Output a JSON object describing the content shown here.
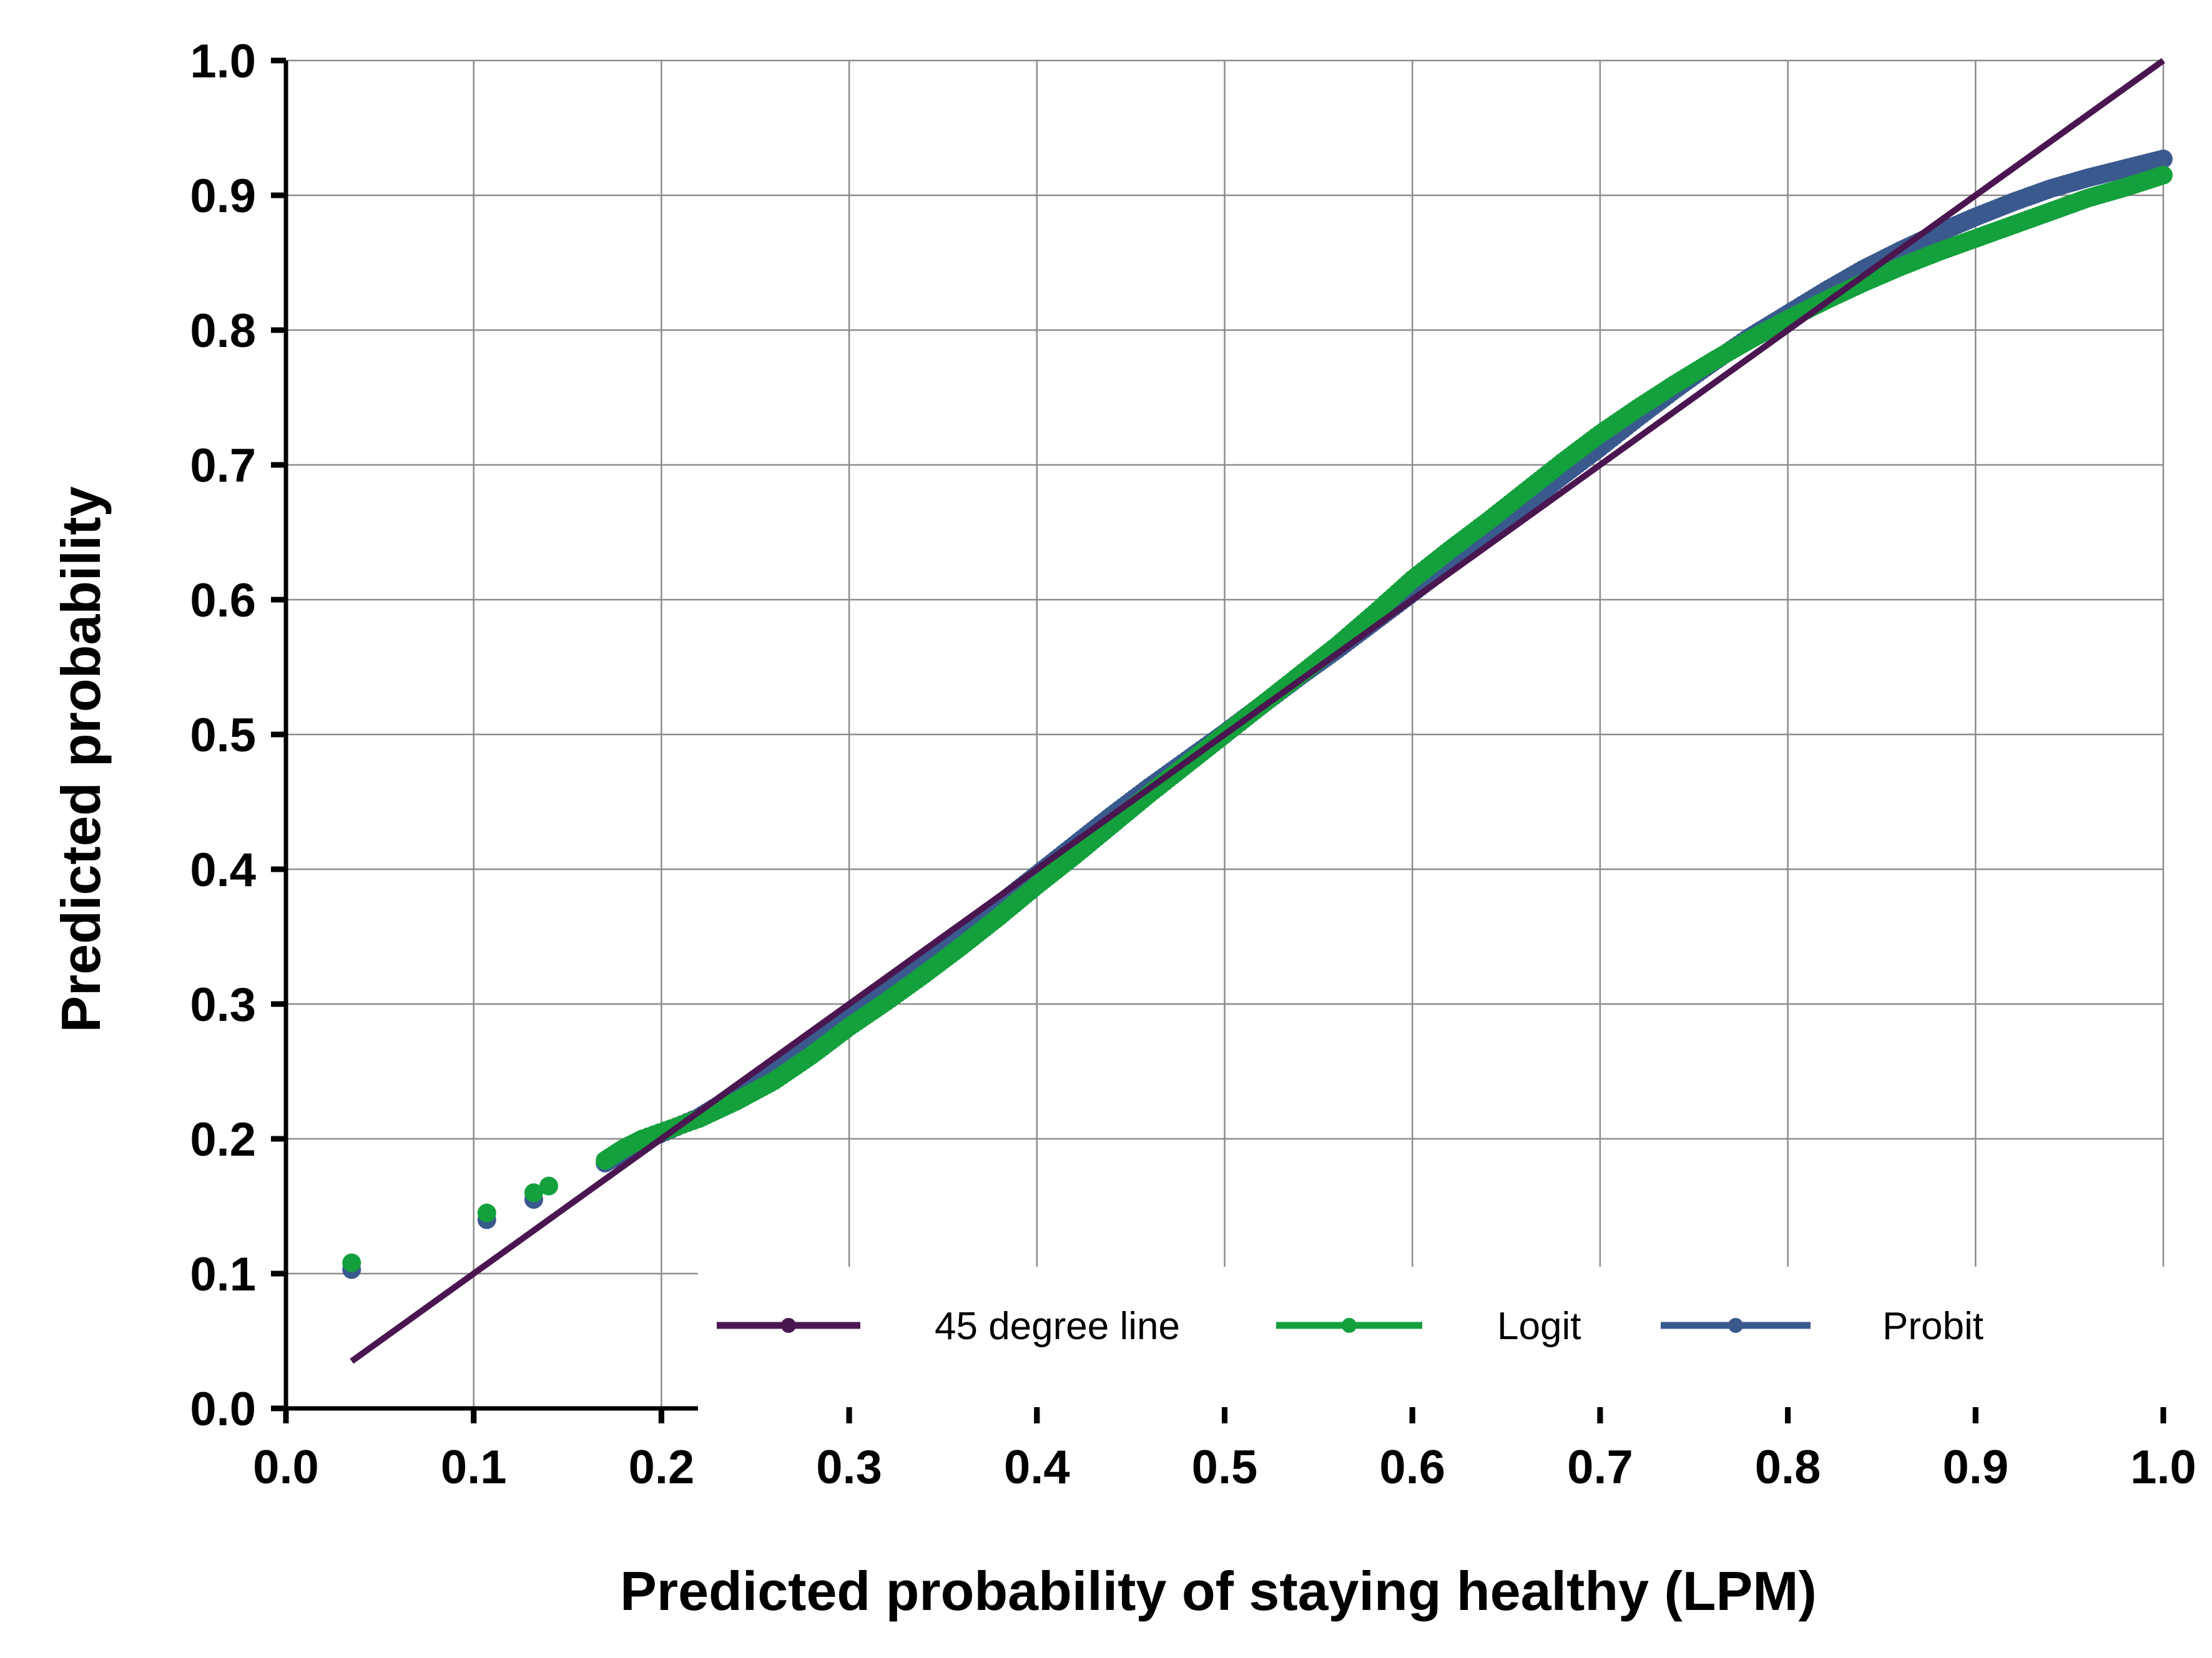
{
  "chart_data": {
    "type": "scatter",
    "title": "",
    "xlabel": "Predicted probability of staying healthy (LPM)",
    "ylabel": "Predicted probability",
    "xlim": [
      0.0,
      1.0
    ],
    "ylim": [
      0.0,
      1.0
    ],
    "x_ticks": [
      "0.0",
      "0.1",
      "0.2",
      "0.3",
      "0.4",
      "0.5",
      "0.6",
      "0.7",
      "0.8",
      "0.9",
      "1.0"
    ],
    "y_ticks": [
      "0.0",
      "0.1",
      "0.2",
      "0.3",
      "0.4",
      "0.5",
      "0.6",
      "0.7",
      "0.8",
      "0.9",
      "1.0"
    ],
    "grid": true,
    "legend_position": "bottom-right, inside plot",
    "series": [
      {
        "name": "45 degree line",
        "type": "line",
        "color": "#4a1650",
        "x": [
          0.035,
          1.0
        ],
        "y": [
          0.035,
          1.0
        ]
      },
      {
        "name": "Logit",
        "type": "scatter",
        "color": "#14a03c",
        "x": [
          0.035,
          0.107,
          0.132,
          0.14,
          0.17,
          0.18,
          0.19,
          0.22,
          0.24,
          0.26,
          0.28,
          0.3,
          0.32,
          0.34,
          0.36,
          0.38,
          0.4,
          0.42,
          0.44,
          0.46,
          0.48,
          0.5,
          0.52,
          0.54,
          0.56,
          0.58,
          0.6,
          0.62,
          0.64,
          0.66,
          0.68,
          0.7,
          0.72,
          0.74,
          0.76,
          0.78,
          0.8,
          0.82,
          0.84,
          0.86,
          0.88,
          0.9,
          0.92,
          0.94,
          0.96,
          0.98,
          1.0
        ],
        "y": [
          0.108,
          0.145,
          0.16,
          0.165,
          0.184,
          0.193,
          0.2,
          0.215,
          0.228,
          0.243,
          0.262,
          0.283,
          0.302,
          0.322,
          0.343,
          0.365,
          0.388,
          0.41,
          0.433,
          0.456,
          0.478,
          0.5,
          0.522,
          0.544,
          0.566,
          0.59,
          0.615,
          0.637,
          0.658,
          0.68,
          0.702,
          0.723,
          0.742,
          0.76,
          0.777,
          0.793,
          0.808,
          0.822,
          0.835,
          0.847,
          0.858,
          0.868,
          0.878,
          0.888,
          0.898,
          0.906,
          0.915
        ]
      },
      {
        "name": "Probit",
        "type": "scatter",
        "color": "#3a5a8e",
        "x": [
          0.035,
          0.107,
          0.132,
          0.17,
          0.19,
          0.22,
          0.24,
          0.26,
          0.28,
          0.3,
          0.32,
          0.34,
          0.36,
          0.38,
          0.4,
          0.42,
          0.44,
          0.46,
          0.48,
          0.5,
          0.52,
          0.54,
          0.56,
          0.58,
          0.6,
          0.62,
          0.64,
          0.66,
          0.68,
          0.7,
          0.72,
          0.74,
          0.76,
          0.78,
          0.8,
          0.82,
          0.84,
          0.86,
          0.88,
          0.9,
          0.92,
          0.94,
          0.96,
          0.98,
          1.0
        ],
        "y": [
          0.103,
          0.14,
          0.155,
          0.182,
          0.198,
          0.216,
          0.233,
          0.252,
          0.27,
          0.29,
          0.31,
          0.33,
          0.352,
          0.374,
          0.396,
          0.418,
          0.44,
          0.461,
          0.481,
          0.501,
          0.522,
          0.543,
          0.563,
          0.584,
          0.605,
          0.626,
          0.648,
          0.67,
          0.692,
          0.713,
          0.735,
          0.756,
          0.776,
          0.795,
          0.812,
          0.829,
          0.845,
          0.859,
          0.872,
          0.884,
          0.895,
          0.905,
          0.913,
          0.92,
          0.927
        ]
      }
    ]
  }
}
